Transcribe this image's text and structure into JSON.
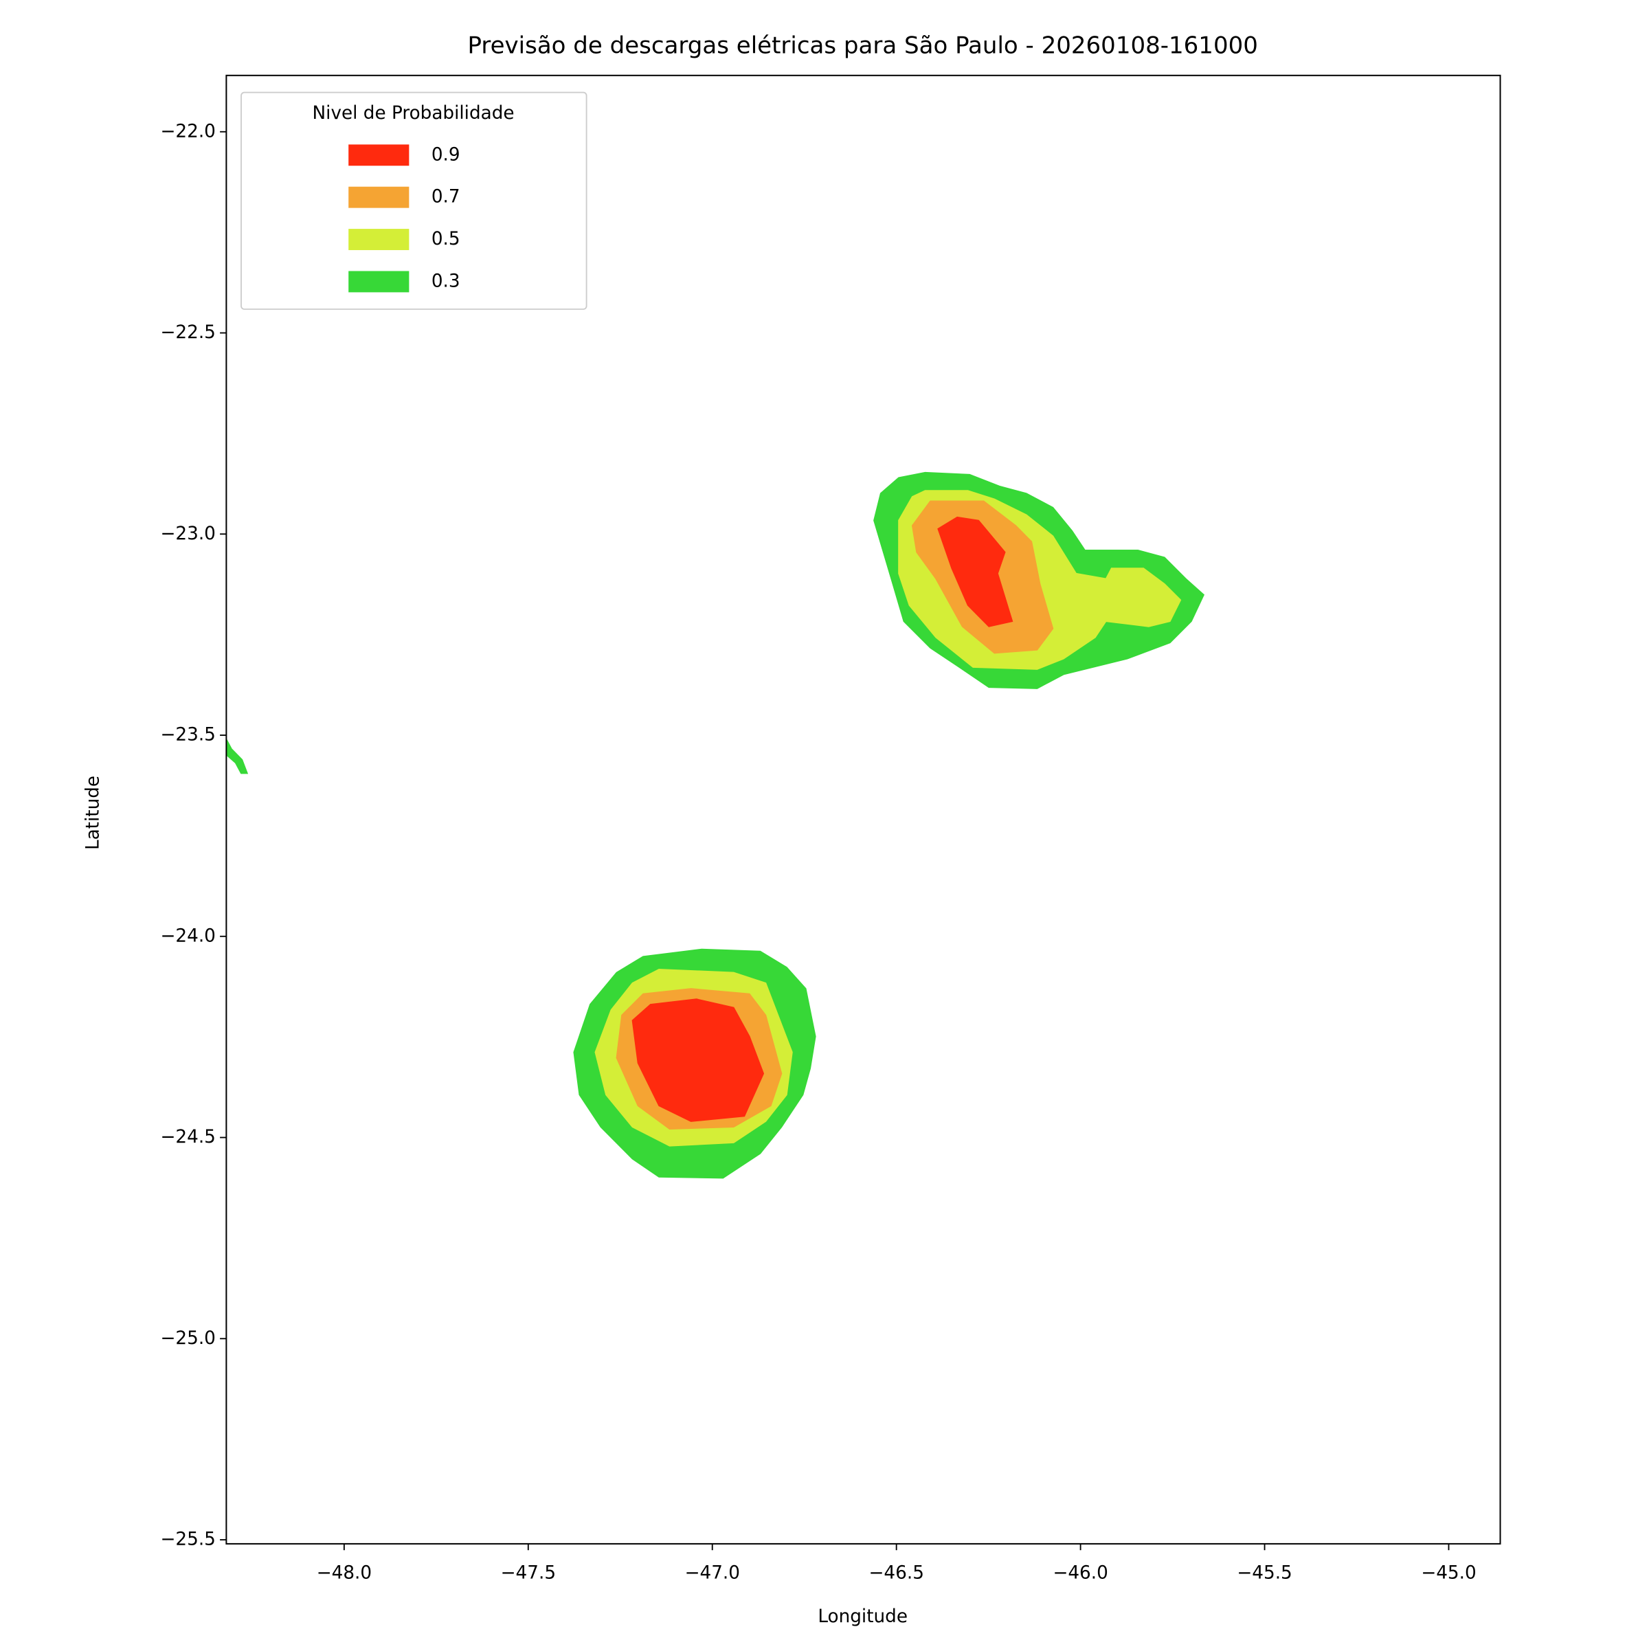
{
  "chart_data": {
    "type": "contour",
    "title": "Previsão de descargas elétricas para São Paulo - 20260108-161000",
    "xlabel": "Longitude",
    "ylabel": "Latitude",
    "xlim": [
      -48.32,
      -44.86
    ],
    "ylim": [
      -25.51,
      -21.86
    ],
    "xticks": [
      {
        "value": -48.0,
        "label": "−48.0"
      },
      {
        "value": -47.5,
        "label": "−47.5"
      },
      {
        "value": -47.0,
        "label": "−47.0"
      },
      {
        "value": -46.5,
        "label": "−46.5"
      },
      {
        "value": -46.0,
        "label": "−46.0"
      },
      {
        "value": -45.5,
        "label": "−45.5"
      },
      {
        "value": -45.0,
        "label": "−45.0"
      }
    ],
    "yticks": [
      {
        "value": -22.0,
        "label": "−22.0"
      },
      {
        "value": -22.5,
        "label": "−22.5"
      },
      {
        "value": -23.0,
        "label": "−23.0"
      },
      {
        "value": -23.5,
        "label": "−23.5"
      },
      {
        "value": -24.0,
        "label": "−24.0"
      },
      {
        "value": -24.5,
        "label": "−24.5"
      },
      {
        "value": -25.0,
        "label": "−25.0"
      },
      {
        "value": -25.5,
        "label": "−25.5"
      }
    ],
    "legend_title": "Nivel de Probabilidade",
    "legend_position": "upper left",
    "series": [
      {
        "name": "0.9",
        "color": "#ff2a0e",
        "polygons": [
          [
            [
              -46.387,
              -22.987
            ],
            [
              -46.335,
              -22.958
            ],
            [
              -46.277,
              -22.966
            ],
            [
              -46.205,
              -23.045
            ],
            [
              -46.225,
              -23.098
            ],
            [
              -46.185,
              -23.217
            ],
            [
              -46.249,
              -23.23
            ],
            [
              -46.306,
              -23.177
            ],
            [
              -46.35,
              -23.085
            ]
          ],
          [
            [
              -47.217,
              -24.209
            ],
            [
              -47.168,
              -24.169
            ],
            [
              -47.043,
              -24.156
            ],
            [
              -46.942,
              -24.177
            ],
            [
              -46.899,
              -24.249
            ],
            [
              -46.861,
              -24.341
            ],
            [
              -46.913,
              -24.447
            ],
            [
              -47.058,
              -24.46
            ],
            [
              -47.145,
              -24.421
            ],
            [
              -47.202,
              -24.315
            ]
          ]
        ]
      },
      {
        "name": "0.7",
        "color": "#f5a433",
        "polygons": [
          [
            [
              -46.457,
              -22.979
            ],
            [
              -46.408,
              -22.918
            ],
            [
              -46.263,
              -22.918
            ],
            [
              -46.176,
              -22.979
            ],
            [
              -46.133,
              -23.019
            ],
            [
              -46.11,
              -23.124
            ],
            [
              -46.075,
              -23.235
            ],
            [
              -46.118,
              -23.288
            ],
            [
              -46.234,
              -23.296
            ],
            [
              -46.321,
              -23.23
            ],
            [
              -46.393,
              -23.111
            ],
            [
              -46.445,
              -23.045
            ]
          ],
          [
            [
              -47.246,
              -24.196
            ],
            [
              -47.188,
              -24.143
            ],
            [
              -47.058,
              -24.13
            ],
            [
              -46.899,
              -24.143
            ],
            [
              -46.855,
              -24.196
            ],
            [
              -46.812,
              -24.341
            ],
            [
              -46.841,
              -24.421
            ],
            [
              -46.942,
              -24.474
            ],
            [
              -47.116,
              -24.479
            ],
            [
              -47.202,
              -24.421
            ],
            [
              -47.26,
              -24.302
            ]
          ]
        ]
      },
      {
        "name": "0.5",
        "color": "#d4ee37",
        "polygons": [
          [
            [
              -46.494,
              -22.966
            ],
            [
              -46.457,
              -22.907
            ],
            [
              -46.422,
              -22.892
            ],
            [
              -46.306,
              -22.892
            ],
            [
              -46.234,
              -22.913
            ],
            [
              -46.147,
              -22.952
            ],
            [
              -46.075,
              -23.005
            ],
            [
              -46.012,
              -23.098
            ],
            [
              -45.931,
              -23.111
            ],
            [
              -45.916,
              -23.085
            ],
            [
              -45.829,
              -23.085
            ],
            [
              -45.772,
              -23.124
            ],
            [
              -45.728,
              -23.164
            ],
            [
              -45.757,
              -23.217
            ],
            [
              -45.815,
              -23.23
            ],
            [
              -45.931,
              -23.217
            ],
            [
              -45.96,
              -23.257
            ],
            [
              -46.046,
              -23.31
            ],
            [
              -46.118,
              -23.336
            ],
            [
              -46.292,
              -23.331
            ],
            [
              -46.393,
              -23.257
            ],
            [
              -46.465,
              -23.177
            ],
            [
              -46.494,
              -23.098
            ]
          ],
          [
            [
              -47.275,
              -24.183
            ],
            [
              -47.217,
              -24.116
            ],
            [
              -47.145,
              -24.082
            ],
            [
              -46.942,
              -24.09
            ],
            [
              -46.855,
              -24.116
            ],
            [
              -46.783,
              -24.288
            ],
            [
              -46.798,
              -24.394
            ],
            [
              -46.855,
              -24.46
            ],
            [
              -46.942,
              -24.513
            ],
            [
              -47.116,
              -24.521
            ],
            [
              -47.217,
              -24.474
            ],
            [
              -47.289,
              -24.394
            ],
            [
              -47.318,
              -24.288
            ]
          ]
        ]
      },
      {
        "name": "0.3",
        "color": "#37d837",
        "polygons": [
          [
            [
              -46.543,
              -22.899
            ],
            [
              -46.494,
              -22.86
            ],
            [
              -46.422,
              -22.847
            ],
            [
              -46.301,
              -22.852
            ],
            [
              -46.22,
              -22.881
            ],
            [
              -46.147,
              -22.899
            ],
            [
              -46.075,
              -22.934
            ],
            [
              -46.023,
              -22.992
            ],
            [
              -45.988,
              -23.04
            ],
            [
              -45.844,
              -23.04
            ],
            [
              -45.772,
              -23.058
            ],
            [
              -45.714,
              -23.111
            ],
            [
              -45.665,
              -23.151
            ],
            [
              -45.699,
              -23.217
            ],
            [
              -45.757,
              -23.27
            ],
            [
              -45.873,
              -23.31
            ],
            [
              -46.046,
              -23.349
            ],
            [
              -46.118,
              -23.384
            ],
            [
              -46.249,
              -23.381
            ],
            [
              -46.321,
              -23.336
            ],
            [
              -46.408,
              -23.283
            ],
            [
              -46.48,
              -23.217
            ],
            [
              -46.514,
              -23.111
            ],
            [
              -46.561,
              -22.966
            ]
          ],
          [
            [
              -47.332,
              -24.169
            ],
            [
              -47.26,
              -24.09
            ],
            [
              -47.188,
              -24.05
            ],
            [
              -47.029,
              -24.032
            ],
            [
              -46.87,
              -24.037
            ],
            [
              -46.798,
              -24.077
            ],
            [
              -46.746,
              -24.13
            ],
            [
              -46.72,
              -24.249
            ],
            [
              -46.734,
              -24.328
            ],
            [
              -46.754,
              -24.394
            ],
            [
              -46.812,
              -24.474
            ],
            [
              -46.87,
              -24.54
            ],
            [
              -46.971,
              -24.601
            ],
            [
              -47.145,
              -24.598
            ],
            [
              -47.217,
              -24.553
            ],
            [
              -47.303,
              -24.474
            ],
            [
              -47.361,
              -24.394
            ],
            [
              -47.376,
              -24.288
            ]
          ],
          [
            [
              -48.321,
              -23.508
            ],
            [
              -48.306,
              -23.534
            ],
            [
              -48.277,
              -23.561
            ],
            [
              -48.263,
              -23.595
            ],
            [
              -48.28,
              -23.595
            ],
            [
              -48.295,
              -23.569
            ],
            [
              -48.321,
              -23.548
            ]
          ]
        ]
      }
    ]
  }
}
